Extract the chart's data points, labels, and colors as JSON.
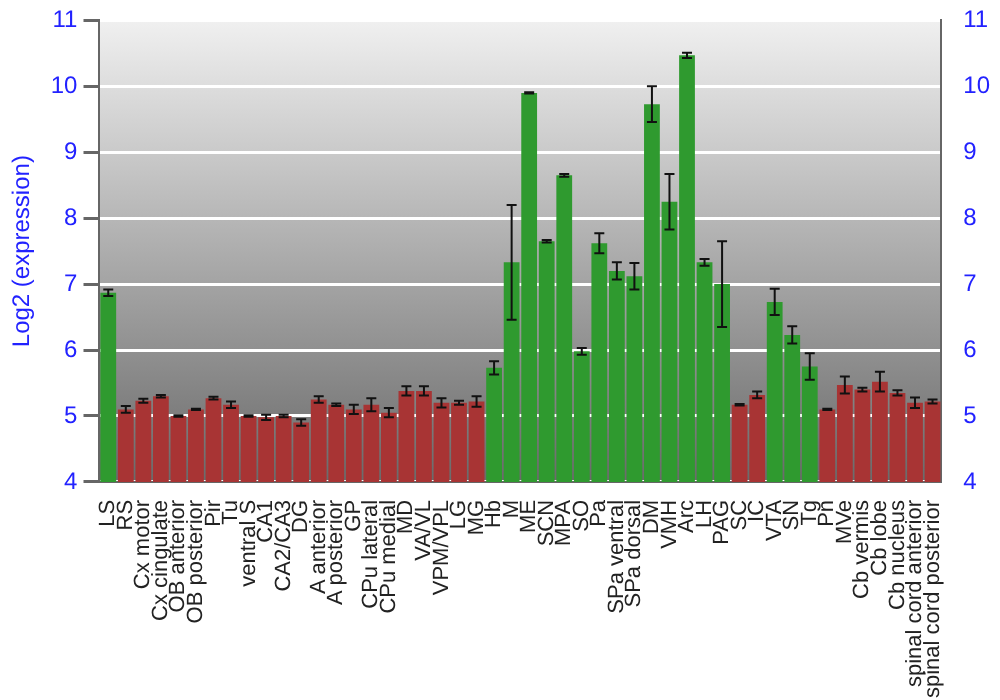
{
  "chart_data": {
    "type": "bar",
    "ylabel": "Log2 (expression)",
    "categories": [
      "LS",
      "RS",
      "Cx motor",
      "Cx cingulate",
      "OB anterior",
      "OB posterior",
      "Pir",
      "Tu",
      "ventral S",
      "CA1",
      "CA2/CA3",
      "DG",
      "A anterior",
      "A posterior",
      "GP",
      "CPu lateral",
      "CPu medial",
      "MD",
      "VA/VL",
      "VPM/VPL",
      "LG",
      "MG",
      "Hb",
      "M",
      "ME",
      "SCN",
      "MPA",
      "SO",
      "Pa",
      "SPa ventral",
      "SPa dorsal",
      "DM",
      "VMH",
      "Arc",
      "LH",
      "PAG",
      "SC",
      "IC",
      "VTA",
      "SN",
      "Tg",
      "Pn",
      "MVe",
      "Cb vermis",
      "Cb lobe",
      "Cb nucleus",
      "spinal cord anterior",
      "spinal cord posterior"
    ],
    "values": [
      6.87,
      5.1,
      5.23,
      5.3,
      5.0,
      5.1,
      5.27,
      5.17,
      5.0,
      4.98,
      5.0,
      4.9,
      5.25,
      5.17,
      5.1,
      5.17,
      5.05,
      5.38,
      5.38,
      5.2,
      5.2,
      5.22,
      5.73,
      7.33,
      9.9,
      7.65,
      8.65,
      5.98,
      7.62,
      7.2,
      7.12,
      9.73,
      8.25,
      10.47,
      7.33,
      7.0,
      5.17,
      5.32,
      6.73,
      6.23,
      5.75,
      5.1,
      5.47,
      5.4,
      5.52,
      5.35,
      5.2,
      5.22
    ],
    "errors": [
      0.05,
      0.05,
      0.03,
      0.02,
      0.01,
      0.01,
      0.02,
      0.05,
      0.01,
      0.04,
      0.02,
      0.05,
      0.05,
      0.02,
      0.07,
      0.1,
      0.07,
      0.07,
      0.07,
      0.07,
      0.03,
      0.08,
      0.1,
      0.87,
      0.01,
      0.02,
      0.02,
      0.05,
      0.15,
      0.13,
      0.2,
      0.27,
      0.42,
      0.04,
      0.05,
      0.65,
      0.01,
      0.05,
      0.2,
      0.13,
      0.2,
      0.01,
      0.13,
      0.03,
      0.15,
      0.04,
      0.08,
      0.03
    ],
    "colors": [
      "#2f9a2f",
      "#a83434",
      "#a83434",
      "#a83434",
      "#a83434",
      "#a83434",
      "#a83434",
      "#a83434",
      "#a83434",
      "#a83434",
      "#a83434",
      "#a83434",
      "#a83434",
      "#a83434",
      "#a83434",
      "#a83434",
      "#a83434",
      "#a83434",
      "#a83434",
      "#a83434",
      "#a83434",
      "#a83434",
      "#2f9a2f",
      "#2f9a2f",
      "#2f9a2f",
      "#2f9a2f",
      "#2f9a2f",
      "#2f9a2f",
      "#2f9a2f",
      "#2f9a2f",
      "#2f9a2f",
      "#2f9a2f",
      "#2f9a2f",
      "#2f9a2f",
      "#2f9a2f",
      "#2f9a2f",
      "#a83434",
      "#a83434",
      "#2f9a2f",
      "#2f9a2f",
      "#2f9a2f",
      "#a83434",
      "#a83434",
      "#a83434",
      "#a83434",
      "#a83434",
      "#a83434",
      "#a83434"
    ],
    "ylim": [
      4,
      11
    ],
    "yticks": [
      4,
      5,
      6,
      7,
      8,
      9,
      10,
      11
    ],
    "y2lim": [
      4,
      11
    ],
    "y2ticks": [
      4,
      5,
      6,
      7,
      8,
      9,
      10,
      11
    ],
    "grid": "y",
    "legend": false
  }
}
